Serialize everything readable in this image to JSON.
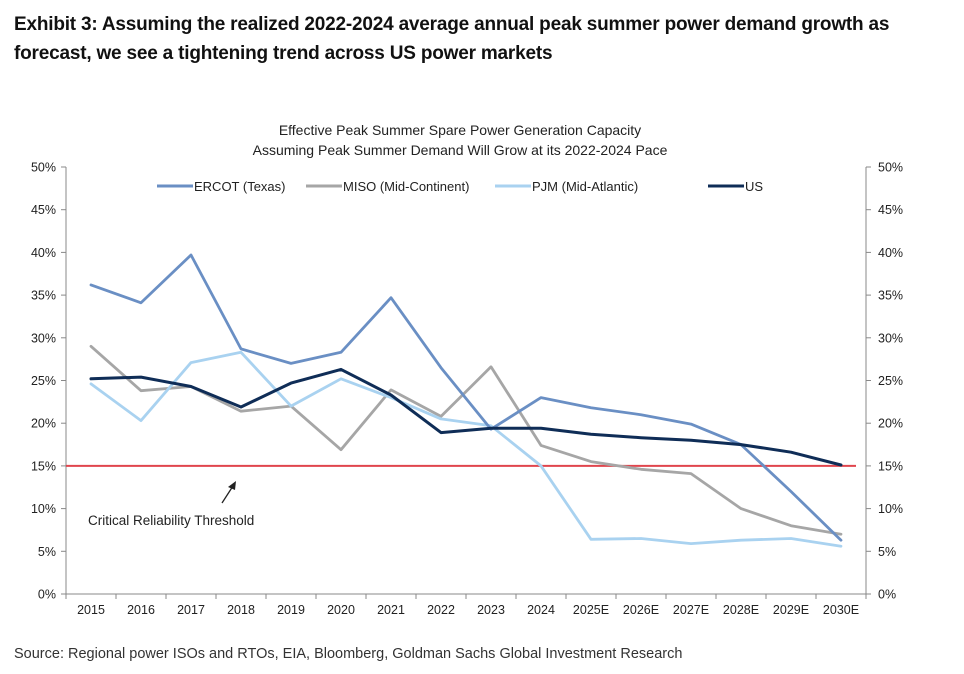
{
  "exhibit": {
    "title": "Exhibit 3: Assuming the realized 2022-2024 average annual peak summer power demand growth as forecast, we see a tightening trend across US power markets",
    "source": "Source: Regional power ISOs and RTOs, EIA, Bloomberg, Goldman Sachs Global Investment Research"
  },
  "chart_data": {
    "type": "line",
    "title": "Effective Peak Summer Spare Power Generation Capacity",
    "subtitle": "Assuming Peak Summer Demand Will Grow at its 2022-2024 Pace",
    "categories": [
      "2015",
      "2016",
      "2017",
      "2018",
      "2019",
      "2020",
      "2021",
      "2022",
      "2023",
      "2024",
      "2025E",
      "2026E",
      "2027E",
      "2028E",
      "2029E",
      "2030E"
    ],
    "ylim": [
      0,
      50
    ],
    "yticks": [
      "0%",
      "5%",
      "10%",
      "15%",
      "20%",
      "25%",
      "30%",
      "35%",
      "40%",
      "45%",
      "50%"
    ],
    "legend_position": "top",
    "grid": false,
    "series": [
      {
        "name": "ERCOT (Texas)",
        "color": "#6a8fc4",
        "values": [
          36.2,
          34.1,
          39.7,
          28.7,
          27.0,
          28.3,
          34.7,
          26.5,
          19.3,
          23.0,
          21.8,
          21.0,
          19.9,
          17.5,
          12.0,
          6.3
        ]
      },
      {
        "name": "MISO (Mid-Continent)",
        "color": "#a6a6a6",
        "values": [
          29.0,
          23.8,
          24.3,
          21.4,
          22.0,
          16.9,
          23.9,
          20.8,
          26.6,
          17.4,
          15.5,
          14.6,
          14.1,
          10.0,
          8.0,
          7.0
        ]
      },
      {
        "name": "PJM (Mid-Atlantic)",
        "color": "#a9d2f0",
        "values": [
          24.6,
          20.3,
          27.1,
          28.3,
          22.0,
          25.2,
          23.0,
          20.5,
          19.7,
          15.0,
          6.4,
          6.5,
          5.9,
          6.3,
          6.5,
          5.6
        ]
      },
      {
        "name": "US",
        "color": "#0f2d57",
        "values": [
          25.2,
          25.4,
          24.3,
          21.9,
          24.7,
          26.3,
          23.3,
          18.9,
          19.4,
          19.4,
          18.7,
          18.3,
          18.0,
          17.5,
          16.6,
          15.1
        ]
      }
    ],
    "threshold": {
      "value": 15,
      "label": "Critical Reliability Threshold",
      "color": "#e0454d"
    }
  }
}
